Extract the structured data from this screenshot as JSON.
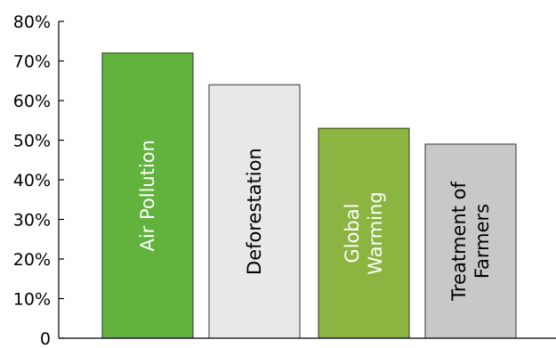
{
  "chart_data": {
    "type": "bar",
    "categories": [
      "Air Pollution",
      "Deforestation",
      "Global Warming",
      "Treatment of Farmers"
    ],
    "category_lines": [
      [
        "Air Pollution"
      ],
      [
        "Deforestation"
      ],
      [
        "Global",
        "Warming"
      ],
      [
        "Treatment of",
        "Farmers"
      ]
    ],
    "values": [
      72,
      64,
      53,
      49
    ],
    "ylim": [
      0,
      80
    ],
    "yticks": [
      0,
      10,
      20,
      30,
      40,
      50,
      60,
      70,
      80
    ],
    "ytick_labels": [
      "0",
      "10%",
      "20%",
      "30%",
      "40%",
      "50%",
      "60%",
      "70%",
      "80%"
    ],
    "bar_colors": [
      "#62B33E",
      "#E8E8E8",
      "#8BB440",
      "#C8C8C8"
    ],
    "label_colors": [
      "#FFFFFF",
      "#000000",
      "#FFFFFF",
      "#000000"
    ],
    "grid": false,
    "legend": "none"
  }
}
